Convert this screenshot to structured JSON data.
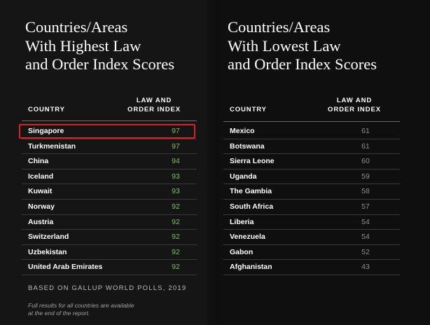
{
  "highest": {
    "title_lines": [
      "Countries/Areas",
      "With Highest Law",
      "and Order Index Scores"
    ],
    "country_header": "COUNTRY",
    "index_header_lines": [
      "LAW AND",
      "ORDER INDEX"
    ],
    "rows": [
      {
        "country": "Singapore",
        "score": "97"
      },
      {
        "country": "Turkmenistan",
        "score": "97"
      },
      {
        "country": "China",
        "score": "94"
      },
      {
        "country": "Iceland",
        "score": "93"
      },
      {
        "country": "Kuwait",
        "score": "93"
      },
      {
        "country": "Norway",
        "score": "92"
      },
      {
        "country": "Austria",
        "score": "92"
      },
      {
        "country": "Switzerland",
        "score": "92"
      },
      {
        "country": "Uzbekistan",
        "score": "92"
      },
      {
        "country": "United Arab Emirates",
        "score": "92"
      }
    ],
    "score_color": "#7bbf5a"
  },
  "lowest": {
    "title_lines": [
      "Countries/Areas",
      "With Lowest Law",
      "and Order Index Scores"
    ],
    "country_header": "COUNTRY",
    "index_header_lines": [
      "LAW AND",
      "ORDER INDEX"
    ],
    "rows": [
      {
        "country": "Mexico",
        "score": "61"
      },
      {
        "country": "Botswana",
        "score": "61"
      },
      {
        "country": "Sierra Leone",
        "score": "60"
      },
      {
        "country": "Uganda",
        "score": "59"
      },
      {
        "country": "The Gambia",
        "score": "58"
      },
      {
        "country": "South Africa",
        "score": "57"
      },
      {
        "country": "Liberia",
        "score": "54"
      },
      {
        "country": "Venezuela",
        "score": "54"
      },
      {
        "country": "Gabon",
        "score": "52"
      },
      {
        "country": "Afghanistan",
        "score": "43"
      }
    ],
    "score_color": "#8e8e8e"
  },
  "footer": {
    "source": "BASED ON GALLUP WORLD POLLS, 2019",
    "note_lines": [
      "Full results for all countries are available",
      "at the end of the report."
    ]
  },
  "highlight": {
    "target": "Singapore",
    "color": "#e02020"
  }
}
